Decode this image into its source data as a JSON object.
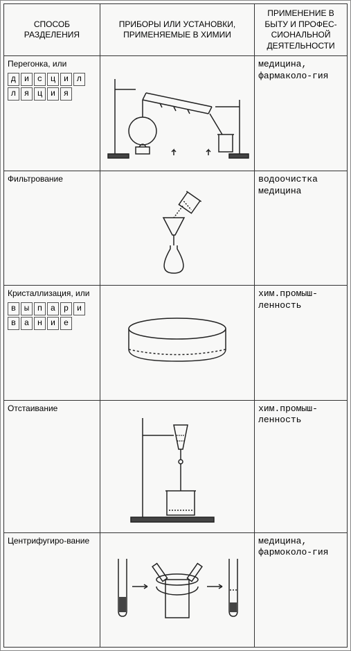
{
  "headers": {
    "c1": "СПОСОБ РАЗДЕЛЕНИЯ",
    "c2": "ПРИБОРЫ ИЛИ УСТАНОВКИ, ПРИМЕНЯЕМЫЕ В ХИМИИ",
    "c3": "ПРИМЕНЕНИЕ В БЫТУ И ПРОФЕС-СИОНАЛЬНОЙ ДЕЯТЕЛЬНОСТИ"
  },
  "rows": [
    {
      "label_pre": "Перегонка, или",
      "boxes": [
        "д",
        "и",
        "с",
        "ц",
        "и",
        "л",
        "л",
        "я",
        "ц",
        "и",
        "я"
      ],
      "apply": "медицина, фармаколо-гия"
    },
    {
      "label_pre": "Фильтрование",
      "boxes": [],
      "apply": "водоочистка медицина"
    },
    {
      "label_pre": "Кристаллизация, или",
      "boxes": [
        "в",
        "ы",
        "п",
        "а",
        "р",
        "и",
        "в",
        "а",
        "н",
        "и",
        "е"
      ],
      "apply": "хим.промыш-ленность"
    },
    {
      "label_pre": "Отстаивание",
      "boxes": [],
      "apply": "хим.промыш-ленность"
    },
    {
      "label_pre": "Центрифугиро-вание",
      "boxes": [],
      "apply": "медицина, фармоколо-гия"
    }
  ],
  "style": {
    "gridColor": "#333333",
    "bg": "#f8f8f7",
    "stroke": "#222222"
  }
}
